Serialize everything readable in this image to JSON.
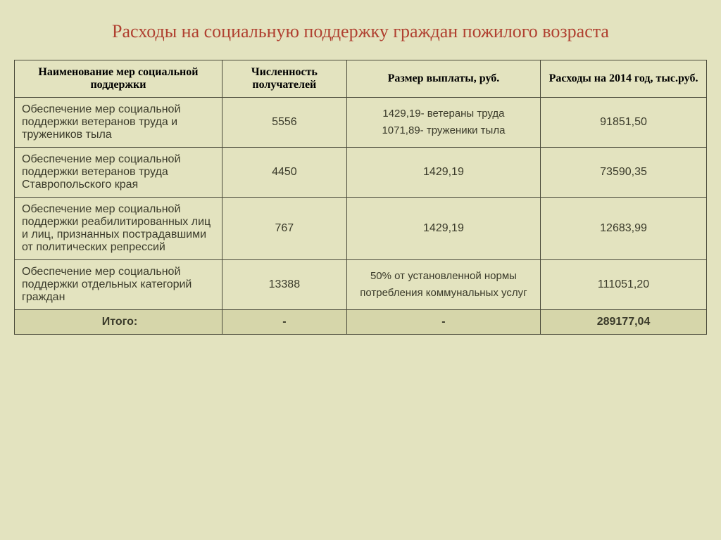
{
  "title": "Расходы на социальную поддержку граждан пожилого возраста",
  "headers": {
    "name": "Наименование мер социальной поддержки",
    "count": "Численность получателей",
    "amount": "Размер выплаты, руб.",
    "expense": "Расходы на 2014 год, тыс.руб."
  },
  "rows": [
    {
      "name": "Обеспечение мер социальной поддержки ветеранов труда и тружеников тыла",
      "count": "5556",
      "amount": "1429,19- ветераны труда\n1071,89- труженики тыла",
      "expense": "91851,50"
    },
    {
      "name": "Обеспечение мер социальной поддержки ветеранов труда Ставропольского края",
      "count": "4450",
      "amount": "1429,19",
      "expense": "73590,35"
    },
    {
      "name": "Обеспечение мер социальной поддержки реабилитированных лиц и лиц, признанных пострадавшими от политических репрессий",
      "count": "767",
      "amount": "1429,19",
      "expense": "12683,99"
    },
    {
      "name": "Обеспечение мер социальной поддержки отдельных категорий граждан",
      "count": "13388",
      "amount": "50% от установленной нормы потребления коммунальных услуг",
      "expense": "111051,20"
    }
  ],
  "total": {
    "label": "Итого:",
    "count": "-",
    "amount": "-",
    "expense": "289177,04"
  },
  "colors": {
    "background": "#e3e3bf",
    "title": "#b04030",
    "border": "#4a4a3a",
    "total_bg": "#d6d6aa",
    "text": "#3a3a2a"
  }
}
